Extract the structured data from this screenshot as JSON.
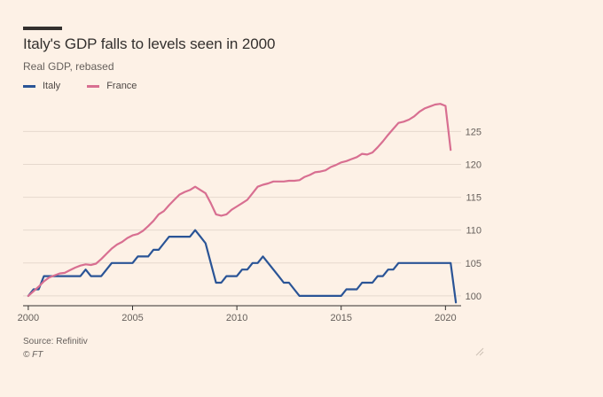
{
  "header": {
    "title": "Italy's GDP falls to levels seen in 2000",
    "subtitle": "Real GDP, rebased"
  },
  "legend": [
    {
      "label": "Italy",
      "color": "#2a5496"
    },
    {
      "label": "France",
      "color": "#d86f91"
    }
  ],
  "footer": {
    "source": "Source: Refinitiv",
    "credit": "© FT"
  },
  "chart_data": {
    "type": "line",
    "title": "Italy's GDP falls to levels seen in 2000",
    "subtitle": "Real GDP, rebased",
    "xlabel": "",
    "ylabel": "",
    "xlim": [
      1999.75,
      2020.75
    ],
    "ylim": [
      98.5,
      129.5
    ],
    "x_ticks": [
      2000,
      2005,
      2010,
      2015,
      2020
    ],
    "x_tick_labels": [
      "2000",
      "2005",
      "2010",
      "2015",
      "2020"
    ],
    "y_ticks": [
      100,
      105,
      110,
      115,
      120,
      125
    ],
    "y_tick_labels": [
      "100",
      "105",
      "110",
      "115",
      "120",
      "125"
    ],
    "y_axis_position": "right",
    "grid": "horizontal",
    "legend_position": "top-left",
    "series": [
      {
        "name": "Italy",
        "color": "#2a5496",
        "points": [
          [
            2000,
            100
          ],
          [
            2000.25,
            101
          ],
          [
            2000.5,
            101
          ],
          [
            2000.75,
            103
          ],
          [
            2001,
            103
          ],
          [
            2001.25,
            103
          ],
          [
            2001.5,
            103
          ],
          [
            2001.75,
            103
          ],
          [
            2002,
            103
          ],
          [
            2002.25,
            103
          ],
          [
            2002.5,
            103
          ],
          [
            2002.75,
            104
          ],
          [
            2003,
            103
          ],
          [
            2003.25,
            103
          ],
          [
            2003.5,
            103
          ],
          [
            2003.75,
            104
          ],
          [
            2004,
            105
          ],
          [
            2004.25,
            105
          ],
          [
            2004.5,
            105
          ],
          [
            2004.75,
            105
          ],
          [
            2005,
            105
          ],
          [
            2005.25,
            106
          ],
          [
            2005.5,
            106
          ],
          [
            2005.75,
            106
          ],
          [
            2006,
            107
          ],
          [
            2006.25,
            107
          ],
          [
            2006.5,
            108
          ],
          [
            2006.75,
            109
          ],
          [
            2007,
            109
          ],
          [
            2007.25,
            109
          ],
          [
            2007.5,
            109
          ],
          [
            2007.75,
            109
          ],
          [
            2008,
            110
          ],
          [
            2008.25,
            109
          ],
          [
            2008.5,
            108
          ],
          [
            2008.75,
            105
          ],
          [
            2009,
            102
          ],
          [
            2009.25,
            102
          ],
          [
            2009.5,
            103
          ],
          [
            2009.75,
            103
          ],
          [
            2010,
            103
          ],
          [
            2010.25,
            104
          ],
          [
            2010.5,
            104
          ],
          [
            2010.75,
            105
          ],
          [
            2011,
            105
          ],
          [
            2011.25,
            106
          ],
          [
            2011.5,
            105
          ],
          [
            2011.75,
            104
          ],
          [
            2012,
            103
          ],
          [
            2012.25,
            102
          ],
          [
            2012.5,
            102
          ],
          [
            2012.75,
            101
          ],
          [
            2013,
            100
          ],
          [
            2013.25,
            100
          ],
          [
            2013.5,
            100
          ],
          [
            2013.75,
            100
          ],
          [
            2014,
            100
          ],
          [
            2014.25,
            100
          ],
          [
            2014.5,
            100
          ],
          [
            2014.75,
            100
          ],
          [
            2015,
            100
          ],
          [
            2015.25,
            101
          ],
          [
            2015.5,
            101
          ],
          [
            2015.75,
            101
          ],
          [
            2016,
            102
          ],
          [
            2016.25,
            102
          ],
          [
            2016.5,
            102
          ],
          [
            2016.75,
            103
          ],
          [
            2017,
            103
          ],
          [
            2017.25,
            104
          ],
          [
            2017.5,
            104
          ],
          [
            2017.75,
            105
          ],
          [
            2018,
            105
          ],
          [
            2018.25,
            105
          ],
          [
            2018.5,
            105
          ],
          [
            2018.75,
            105
          ],
          [
            2019,
            105
          ],
          [
            2019.25,
            105
          ],
          [
            2019.5,
            105
          ],
          [
            2019.75,
            105
          ],
          [
            2020,
            105
          ],
          [
            2020.25,
            105
          ],
          [
            2020.5,
            99
          ]
        ]
      },
      {
        "name": "France",
        "color": "#d86f91",
        "points": [
          [
            2000,
            100
          ],
          [
            2000.25,
            100.7
          ],
          [
            2000.5,
            101.4
          ],
          [
            2000.75,
            102.2
          ],
          [
            2001,
            102.8
          ],
          [
            2001.25,
            103.1
          ],
          [
            2001.5,
            103.4
          ],
          [
            2001.75,
            103.5
          ],
          [
            2002,
            103.9
          ],
          [
            2002.25,
            104.3
          ],
          [
            2002.5,
            104.6
          ],
          [
            2002.75,
            104.8
          ],
          [
            2003,
            104.7
          ],
          [
            2003.25,
            104.9
          ],
          [
            2003.5,
            105.6
          ],
          [
            2003.75,
            106.4
          ],
          [
            2004,
            107.2
          ],
          [
            2004.25,
            107.8
          ],
          [
            2004.5,
            108.2
          ],
          [
            2004.75,
            108.8
          ],
          [
            2005,
            109.2
          ],
          [
            2005.25,
            109.4
          ],
          [
            2005.5,
            109.9
          ],
          [
            2005.75,
            110.6
          ],
          [
            2006,
            111.4
          ],
          [
            2006.25,
            112.4
          ],
          [
            2006.5,
            112.9
          ],
          [
            2006.75,
            113.8
          ],
          [
            2007,
            114.6
          ],
          [
            2007.25,
            115.4
          ],
          [
            2007.5,
            115.8
          ],
          [
            2007.75,
            116.1
          ],
          [
            2008,
            116.6
          ],
          [
            2008.25,
            116.1
          ],
          [
            2008.5,
            115.6
          ],
          [
            2008.75,
            114.1
          ],
          [
            2009,
            112.4
          ],
          [
            2009.25,
            112.2
          ],
          [
            2009.5,
            112.4
          ],
          [
            2009.75,
            113.1
          ],
          [
            2010,
            113.6
          ],
          [
            2010.25,
            114.1
          ],
          [
            2010.5,
            114.6
          ],
          [
            2010.75,
            115.6
          ],
          [
            2011,
            116.6
          ],
          [
            2011.25,
            116.9
          ],
          [
            2011.5,
            117.1
          ],
          [
            2011.75,
            117.4
          ],
          [
            2012,
            117.4
          ],
          [
            2012.25,
            117.4
          ],
          [
            2012.5,
            117.5
          ],
          [
            2012.75,
            117.5
          ],
          [
            2013,
            117.6
          ],
          [
            2013.25,
            118.1
          ],
          [
            2013.5,
            118.4
          ],
          [
            2013.75,
            118.8
          ],
          [
            2014,
            118.9
          ],
          [
            2014.25,
            119.1
          ],
          [
            2014.5,
            119.6
          ],
          [
            2014.75,
            119.9
          ],
          [
            2015,
            120.3
          ],
          [
            2015.25,
            120.5
          ],
          [
            2015.5,
            120.8
          ],
          [
            2015.75,
            121.1
          ],
          [
            2016,
            121.6
          ],
          [
            2016.25,
            121.5
          ],
          [
            2016.5,
            121.8
          ],
          [
            2016.75,
            122.6
          ],
          [
            2017,
            123.5
          ],
          [
            2017.25,
            124.5
          ],
          [
            2017.5,
            125.4
          ],
          [
            2017.75,
            126.3
          ],
          [
            2018,
            126.5
          ],
          [
            2018.25,
            126.8
          ],
          [
            2018.5,
            127.3
          ],
          [
            2018.75,
            128.0
          ],
          [
            2019,
            128.5
          ],
          [
            2019.25,
            128.8
          ],
          [
            2019.5,
            129.1
          ],
          [
            2019.75,
            129.2
          ],
          [
            2020,
            128.9
          ],
          [
            2020.25,
            122.2
          ]
        ]
      }
    ]
  }
}
